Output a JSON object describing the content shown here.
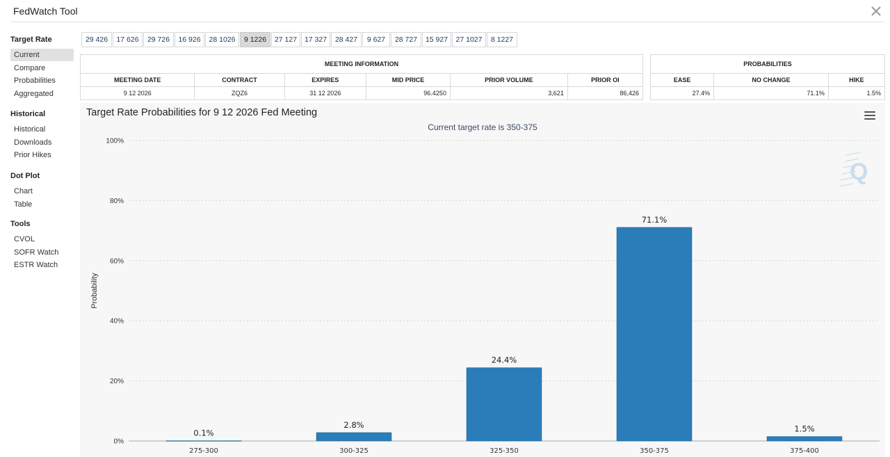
{
  "app": {
    "title": "FedWatch Tool"
  },
  "sidebar": {
    "sections": [
      {
        "heading": "Target Rate",
        "items": [
          "Current",
          "Compare",
          "Probabilities",
          "Aggregated"
        ]
      },
      {
        "heading": "Historical",
        "items": [
          "Historical",
          "Downloads",
          "Prior Hikes"
        ]
      },
      {
        "heading": "Dot Plot",
        "items": [
          "Chart",
          "Table"
        ]
      },
      {
        "heading": "Tools",
        "items": [
          "CVOL",
          "SOFR Watch",
          "ESTR Watch"
        ]
      }
    ],
    "active": "Current"
  },
  "tabs": {
    "items": [
      "29 426",
      "17 626",
      "29 726",
      "16 926",
      "28 1026",
      "9 1226",
      "27 127",
      "17 327",
      "28 427",
      "9 627",
      "28 727",
      "15 927",
      "27 1027",
      "8 1227"
    ],
    "active": "9 1226"
  },
  "meeting_info": {
    "header": "MEETING INFORMATION",
    "columns": [
      "MEETING DATE",
      "CONTRACT",
      "EXPIRES",
      "MID PRICE",
      "PRIOR VOLUME",
      "PRIOR OI"
    ],
    "row": [
      "9 12 2026",
      "ZQZ6",
      "31 12 2026",
      "96.4250",
      "3,621",
      "86,426"
    ]
  },
  "probabilities": {
    "header": "PROBABILITIES",
    "columns": [
      "EASE",
      "NO CHANGE",
      "HIKE"
    ],
    "row": [
      "27.4%",
      "71.1%",
      "1.5%"
    ]
  },
  "chart_data": {
    "type": "bar",
    "title": "Target Rate Probabilities for 9 12 2026 Fed Meeting",
    "subtitle": "Current target rate is 350-375",
    "categories": [
      "275-300",
      "300-325",
      "325-350",
      "350-375",
      "375-400"
    ],
    "values": [
      0.1,
      2.8,
      24.4,
      71.1,
      1.5
    ],
    "value_labels": [
      "0.1%",
      "2.8%",
      "24.4%",
      "71.1%",
      "1.5%"
    ],
    "ylabel": "Probability",
    "xlabel": "",
    "ylim": [
      0,
      100
    ],
    "yticks": [
      "0%",
      "20%",
      "40%",
      "60%",
      "80%",
      "100%"
    ],
    "ytick_values": [
      0,
      20,
      40,
      60,
      80,
      100
    ],
    "grid": true,
    "bar_color": "#2a7db8"
  },
  "colors": {
    "bar": "#2a7db8",
    "chart_bg": "#f7f7f7",
    "active_tab": "#d9d9d9"
  },
  "icons": {
    "close": "close-icon",
    "menu": "hamburger-menu-icon",
    "watermark": "quikstrike-logo"
  }
}
